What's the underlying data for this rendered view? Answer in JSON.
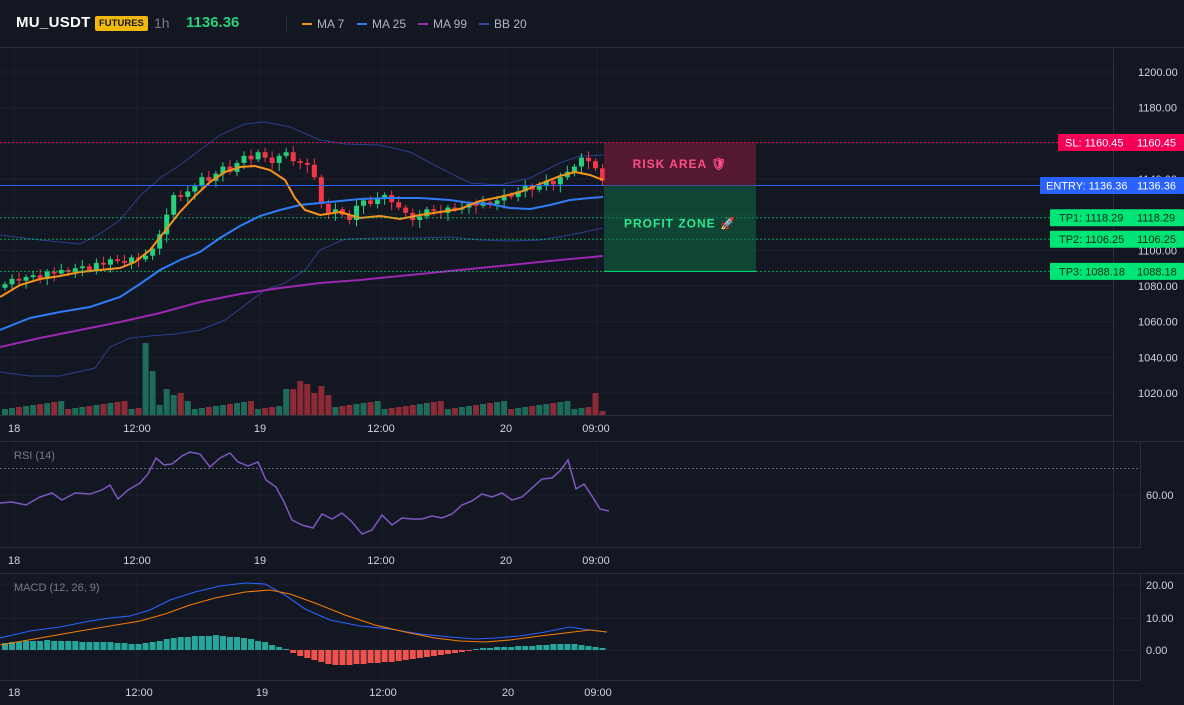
{
  "header": {
    "symbol": "MU_USDT",
    "badge": "FUTURES",
    "timeframe": "1h",
    "last_price": "1136.36",
    "indicators": [
      {
        "label": "MA 7",
        "color": "#f7931a"
      },
      {
        "label": "MA 25",
        "color": "#2f7cf6"
      },
      {
        "label": "MA 99",
        "color": "#9c27b0"
      },
      {
        "label": "BB 20",
        "color": "#2a3f8f"
      }
    ]
  },
  "price_axis": {
    "ticks": [
      "1200.00",
      "1180.00",
      "1160.00",
      "1140.00",
      "1120.00",
      "1100.00",
      "1080.00",
      "1060.00",
      "1040.00",
      "1020.00"
    ],
    "min": 1010,
    "max": 1210
  },
  "time_axis": {
    "ticks": [
      "18",
      "12:00",
      "19",
      "12:00",
      "20",
      "09:00"
    ]
  },
  "levels": {
    "sl": {
      "tag": "SL: 1160.45",
      "value": "1160.45",
      "price": 1160.45
    },
    "entry": {
      "tag": "ENTRY: 1136.36",
      "value": "1136.36",
      "price": 1136.36
    },
    "tp1": {
      "tag": "TP1: 1118.29",
      "value": "1118.29",
      "price": 1118.29
    },
    "tp2": {
      "tag": "TP2: 1106.25",
      "value": "1106.25",
      "price": 1106.25
    },
    "tp3": {
      "tag": "TP3: 1088.18",
      "value": "1088.18",
      "price": 1088.18
    }
  },
  "zones": {
    "risk_label": "RISK AREA 🛡",
    "profit_label": "PROFIT ZONE 🚀"
  },
  "rsi": {
    "title": "RSI (14)",
    "tick": "60.00"
  },
  "macd": {
    "title": "MACD (12, 26, 9)",
    "ticks": [
      "20.00",
      "10.00",
      "0.00"
    ]
  },
  "colors": {
    "up": "#26d07c",
    "down": "#f23645",
    "bg": "#131722",
    "grid": "#1e222d",
    "entry": "#2962ff",
    "sl": "#f50057",
    "tp": "#00e676",
    "rsi": "#7e57c2",
    "macd": "#2962ff",
    "signal": "#f57c00",
    "hist_up": "#26a69a",
    "hist_down": "#ef5350"
  }
}
